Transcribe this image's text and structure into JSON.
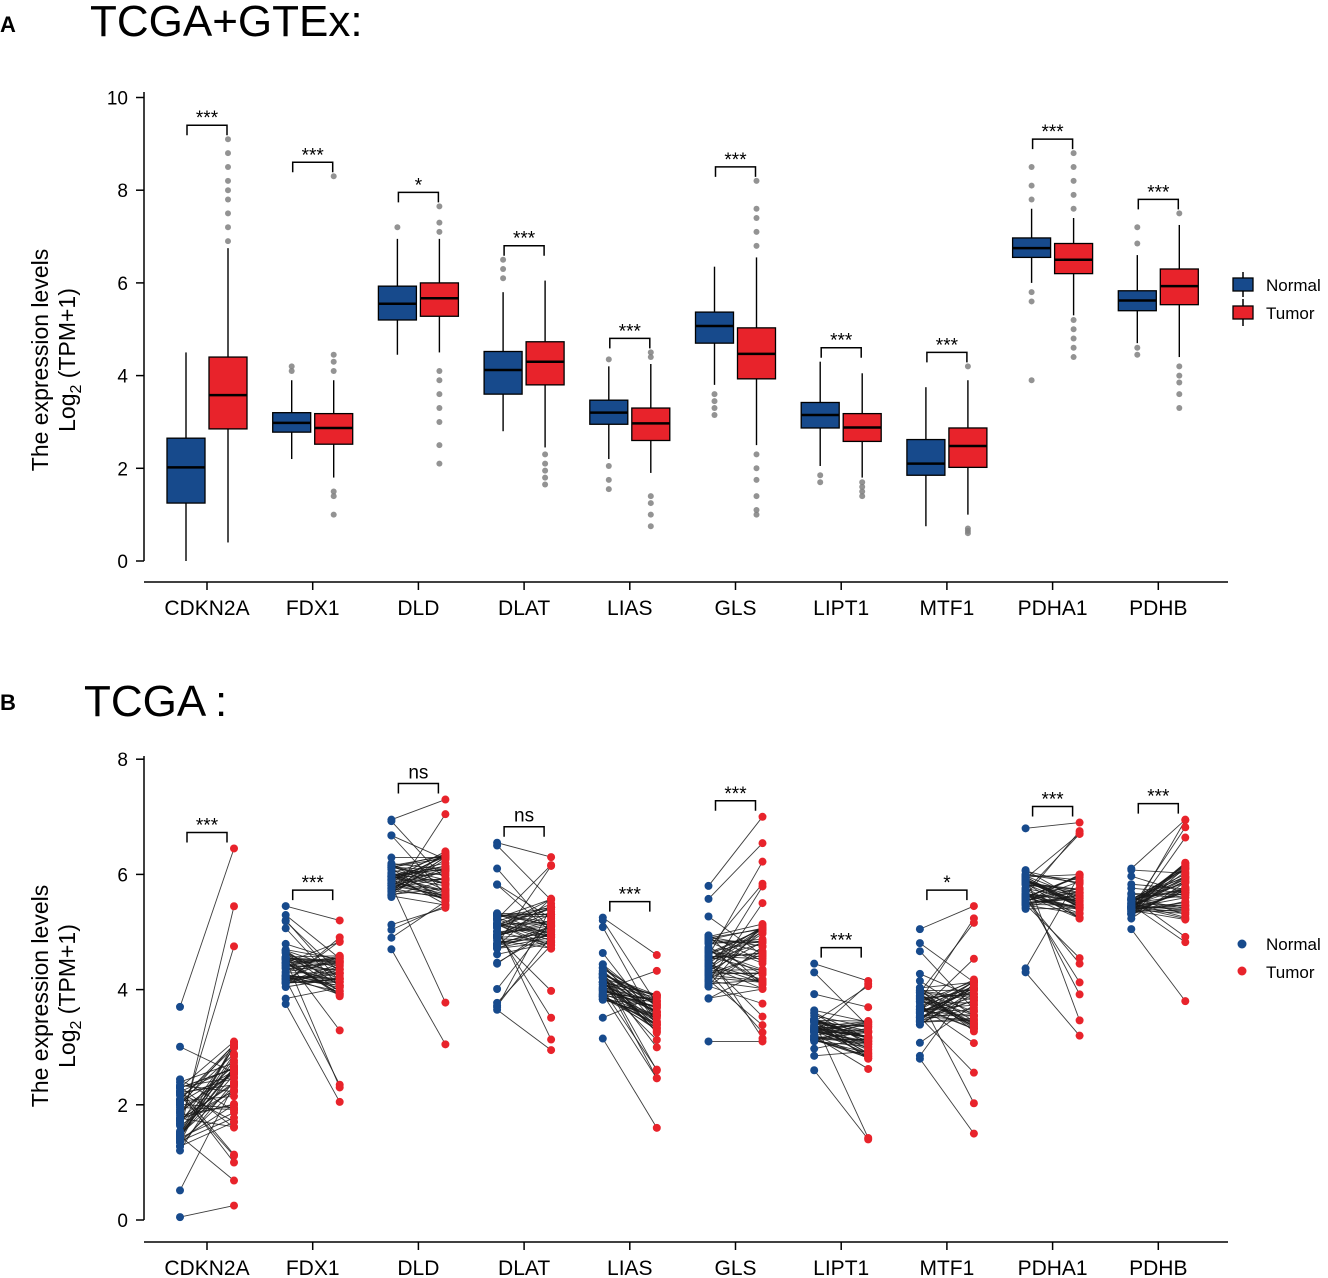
{
  "colors": {
    "normal": "#174a8c",
    "tumor": "#e8232b",
    "outlier": "#808080",
    "pair_line": "#1a1a1a"
  },
  "panel_a": {
    "letter": "A",
    "title": "TCGA+GTEx:"
  },
  "panel_b": {
    "letter": "B",
    "title": "TCGA :"
  },
  "y_label_line1": "The expression levels",
  "y_label_line2_prefix": "Log",
  "y_label_line2_sub": "2",
  "y_label_line2_suffix": " (TPM+1)",
  "legend": {
    "normal": "Normal",
    "tumor": "Tumor"
  },
  "chart_data": [
    {
      "type": "boxplot",
      "title": "TCGA+GTEx:",
      "ylabel": "The expression levels Log2 (TPM+1)",
      "ylim": [
        0,
        10
      ],
      "yticks": [
        0,
        2,
        4,
        6,
        8,
        10
      ],
      "legend_position": "right",
      "categories": [
        "CDKN2A",
        "FDX1",
        "DLD",
        "DLAT",
        "LIAS",
        "GLS",
        "LIPT1",
        "MTF1",
        "PDHA1",
        "PDHB"
      ],
      "significance": [
        "***",
        "***",
        "*",
        "***",
        "***",
        "***",
        "***",
        "***",
        "***",
        "***"
      ],
      "series": [
        {
          "name": "Normal",
          "boxes": [
            {
              "min": 0.0,
              "q1": 1.25,
              "median": 2.02,
              "q3": 2.65,
              "max": 4.5,
              "outliers": []
            },
            {
              "min": 2.2,
              "q1": 2.78,
              "median": 2.98,
              "q3": 3.2,
              "max": 3.9,
              "outliers": [
                4.1,
                4.2
              ]
            },
            {
              "min": 4.45,
              "q1": 5.2,
              "median": 5.55,
              "q3": 5.93,
              "max": 6.95,
              "outliers": [
                7.2
              ]
            },
            {
              "min": 2.8,
              "q1": 3.6,
              "median": 4.12,
              "q3": 4.52,
              "max": 5.8,
              "outliers": [
                6.1,
                6.3,
                6.5
              ]
            },
            {
              "min": 2.2,
              "q1": 2.95,
              "median": 3.2,
              "q3": 3.47,
              "max": 4.2,
              "outliers": [
                1.55,
                1.75,
                2.05,
                4.35
              ]
            },
            {
              "min": 3.8,
              "q1": 4.7,
              "median": 5.07,
              "q3": 5.37,
              "max": 6.35,
              "outliers": [
                3.15,
                3.3,
                3.45,
                3.6
              ]
            },
            {
              "min": 2.05,
              "q1": 2.87,
              "median": 3.15,
              "q3": 3.42,
              "max": 4.3,
              "outliers": [
                1.7,
                1.85
              ]
            },
            {
              "min": 0.75,
              "q1": 1.85,
              "median": 2.1,
              "q3": 2.62,
              "max": 3.75,
              "outliers": []
            },
            {
              "min": 6.0,
              "q1": 6.55,
              "median": 6.75,
              "q3": 6.97,
              "max": 7.6,
              "outliers": [
                3.9,
                5.6,
                5.8,
                7.8,
                8.1,
                8.5
              ]
            },
            {
              "min": 4.7,
              "q1": 5.4,
              "median": 5.62,
              "q3": 5.83,
              "max": 6.6,
              "outliers": [
                4.45,
                4.6,
                6.85,
                7.2
              ]
            }
          ]
        },
        {
          "name": "Tumor",
          "boxes": [
            {
              "min": 0.4,
              "q1": 2.85,
              "median": 3.58,
              "q3": 4.4,
              "max": 6.75,
              "outliers": [
                6.9,
                7.2,
                7.5,
                7.8,
                8.0,
                8.2,
                8.5,
                8.8,
                9.1
              ]
            },
            {
              "min": 1.8,
              "q1": 2.52,
              "median": 2.87,
              "q3": 3.18,
              "max": 3.9,
              "outliers": [
                1.0,
                1.4,
                1.5,
                4.1,
                4.3,
                4.45,
                8.3
              ]
            },
            {
              "min": 4.5,
              "q1": 5.28,
              "median": 5.67,
              "q3": 6.0,
              "max": 6.95,
              "outliers": [
                2.1,
                2.5,
                3.0,
                3.3,
                3.6,
                3.9,
                4.1,
                7.1,
                7.3,
                7.65
              ]
            },
            {
              "min": 2.45,
              "q1": 3.8,
              "median": 4.3,
              "q3": 4.73,
              "max": 6.05,
              "outliers": [
                1.65,
                1.8,
                1.95,
                2.1,
                2.3
              ]
            },
            {
              "min": 1.9,
              "q1": 2.6,
              "median": 2.97,
              "q3": 3.3,
              "max": 4.25,
              "outliers": [
                0.75,
                1.0,
                1.25,
                1.4,
                4.4,
                4.5
              ]
            },
            {
              "min": 2.5,
              "q1": 3.93,
              "median": 4.47,
              "q3": 5.03,
              "max": 6.55,
              "outliers": [
                1.0,
                1.1,
                1.4,
                1.75,
                2.0,
                2.3,
                6.8,
                7.1,
                7.4,
                7.6,
                8.2
              ]
            },
            {
              "min": 1.8,
              "q1": 2.58,
              "median": 2.88,
              "q3": 3.18,
              "max": 4.05,
              "outliers": [
                1.4,
                1.5,
                1.6,
                1.7
              ]
            },
            {
              "min": 1.0,
              "q1": 2.02,
              "median": 2.48,
              "q3": 2.87,
              "max": 3.9,
              "outliers": [
                0.6,
                0.65,
                0.7,
                4.2
              ]
            },
            {
              "min": 5.3,
              "q1": 6.2,
              "median": 6.5,
              "q3": 6.85,
              "max": 7.4,
              "outliers": [
                4.4,
                4.6,
                4.8,
                5.0,
                5.2,
                7.6,
                7.9,
                8.2,
                8.5,
                8.8
              ]
            },
            {
              "min": 4.4,
              "q1": 5.53,
              "median": 5.93,
              "q3": 6.3,
              "max": 7.25,
              "outliers": [
                3.3,
                3.6,
                3.85,
                4.0,
                4.2,
                7.5
              ]
            }
          ]
        }
      ]
    },
    {
      "type": "paired-scatter",
      "title": "TCGA :",
      "ylabel": "The expression levels Log2 (TPM+1)",
      "ylim": [
        0,
        8
      ],
      "yticks": [
        0,
        2,
        4,
        6,
        8
      ],
      "legend_position": "right",
      "categories": [
        "CDKN2A",
        "FDX1",
        "DLD",
        "DLAT",
        "LIAS",
        "GLS",
        "LIPT1",
        "MTF1",
        "PDHA1",
        "PDHB"
      ],
      "significance": [
        "***",
        "***",
        "ns",
        "ns",
        "***",
        "***",
        "***",
        "*",
        "***",
        "***"
      ],
      "series": [
        {
          "name": "Normal",
          "ranges": [
            {
              "min": 0.05,
              "q1": 1.2,
              "median": 1.8,
              "q3": 2.4,
              "max": 3.7
            },
            {
              "min": 3.75,
              "q1": 4.1,
              "median": 4.4,
              "q3": 4.7,
              "max": 5.45
            },
            {
              "min": 4.7,
              "q1": 5.6,
              "median": 5.9,
              "q3": 6.2,
              "max": 6.95
            },
            {
              "min": 3.65,
              "q1": 4.7,
              "median": 5.05,
              "q3": 5.35,
              "max": 6.55
            },
            {
              "min": 3.15,
              "q1": 3.8,
              "median": 4.1,
              "q3": 4.45,
              "max": 5.25
            },
            {
              "min": 3.1,
              "q1": 4.05,
              "median": 4.5,
              "q3": 4.95,
              "max": 5.8
            },
            {
              "min": 2.6,
              "q1": 3.1,
              "median": 3.35,
              "q3": 3.65,
              "max": 4.45
            },
            {
              "min": 2.8,
              "q1": 3.35,
              "median": 3.7,
              "q3": 4.05,
              "max": 5.05
            },
            {
              "min": 4.3,
              "q1": 5.4,
              "median": 5.7,
              "q3": 6.0,
              "max": 6.8
            },
            {
              "min": 5.05,
              "q1": 5.3,
              "median": 5.45,
              "q3": 5.6,
              "max": 6.1
            }
          ]
        },
        {
          "name": "Tumor",
          "ranges": [
            {
              "min": 0.25,
              "q1": 1.6,
              "median": 2.4,
              "q3": 3.1,
              "max": 6.45
            },
            {
              "min": 2.05,
              "q1": 3.9,
              "median": 4.25,
              "q3": 4.6,
              "max": 5.2
            },
            {
              "min": 3.05,
              "q1": 5.4,
              "median": 5.9,
              "q3": 6.4,
              "max": 7.3
            },
            {
              "min": 2.95,
              "q1": 4.7,
              "median": 5.1,
              "q3": 5.6,
              "max": 6.3
            },
            {
              "min": 1.6,
              "q1": 3.25,
              "median": 3.6,
              "q3": 3.95,
              "max": 4.6
            },
            {
              "min": 3.1,
              "q1": 4.0,
              "median": 4.6,
              "q3": 5.2,
              "max": 7.0
            },
            {
              "min": 1.4,
              "q1": 2.8,
              "median": 3.15,
              "q3": 3.45,
              "max": 4.15
            },
            {
              "min": 1.5,
              "q1": 3.3,
              "median": 3.8,
              "q3": 4.2,
              "max": 5.45
            },
            {
              "min": 3.2,
              "q1": 5.2,
              "median": 5.6,
              "q3": 6.0,
              "max": 6.9
            },
            {
              "min": 3.8,
              "q1": 5.2,
              "median": 5.7,
              "q3": 6.2,
              "max": 6.95
            }
          ]
        }
      ]
    }
  ]
}
